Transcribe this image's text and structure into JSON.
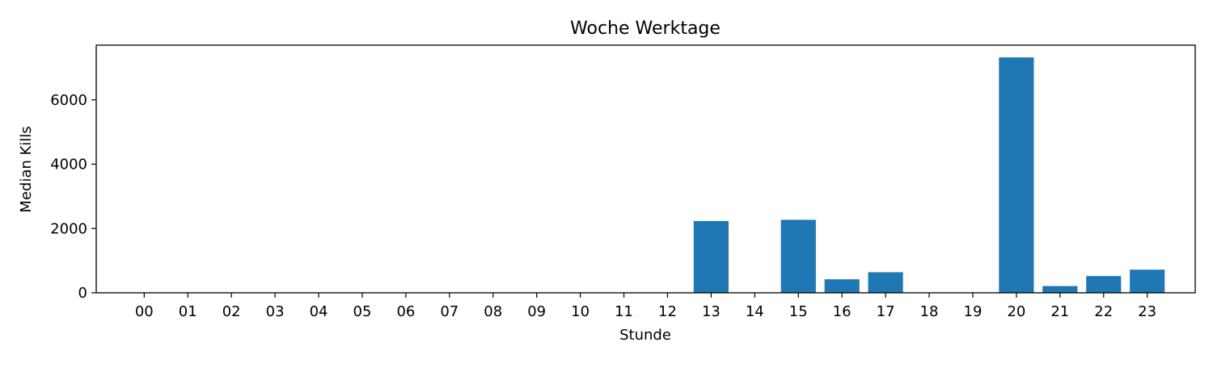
{
  "chart_data": {
    "type": "bar",
    "title": "Woche Werktage",
    "xlabel": "Stunde",
    "ylabel": "Median Kills",
    "categories": [
      "00",
      "01",
      "02",
      "03",
      "04",
      "05",
      "06",
      "07",
      "08",
      "09",
      "10",
      "11",
      "12",
      "13",
      "14",
      "15",
      "16",
      "17",
      "18",
      "19",
      "20",
      "21",
      "22",
      "23"
    ],
    "values": [
      0,
      0,
      0,
      0,
      0,
      0,
      0,
      0,
      0,
      0,
      0,
      0,
      0,
      2230,
      0,
      2270,
      420,
      640,
      0,
      0,
      7320,
      210,
      520,
      720
    ],
    "ylim": [
      0,
      7700
    ],
    "yticks": [
      0,
      2000,
      4000,
      6000
    ],
    "ytick_labels": [
      "0",
      "2000",
      "4000",
      "6000"
    ],
    "bar_color": "#1f77b4",
    "grid": false
  }
}
